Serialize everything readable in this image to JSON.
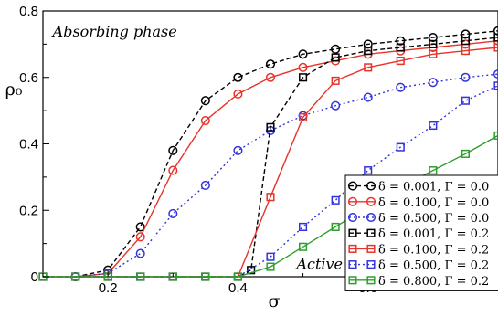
{
  "chart_data": {
    "type": "line",
    "xlabel": "σ",
    "ylabel": "ρ₀",
    "xlim": [
      0.1,
      0.8
    ],
    "ylim": [
      0,
      0.8
    ],
    "xticks": [
      0.2,
      0.4,
      0.6
    ],
    "xtick_labels": [
      "0.2",
      "0.4",
      "0.6"
    ],
    "yticks": [
      0,
      0.2,
      0.4,
      0.6,
      0.8
    ],
    "ytick_labels": [
      "0",
      "0.2",
      "0.4",
      "0.6",
      "0.8"
    ],
    "annotations": [
      {
        "text": "Absorbing phase",
        "x": 0.115,
        "y": 0.74
      },
      {
        "text": "Active phase",
        "x": 0.49,
        "y": 0.04
      }
    ],
    "legend_position": "bottom-right",
    "series": [
      {
        "name": "δ = 0.001, Γ = 0.0",
        "color": "#000000",
        "marker": "circle",
        "dash": "5,3",
        "x": [
          0.15,
          0.2,
          0.25,
          0.3,
          0.35,
          0.4,
          0.45,
          0.5,
          0.55,
          0.6,
          0.65,
          0.7,
          0.75,
          0.8
        ],
        "y": [
          0.0,
          0.02,
          0.15,
          0.38,
          0.53,
          0.6,
          0.64,
          0.67,
          0.685,
          0.7,
          0.71,
          0.72,
          0.73,
          0.74
        ]
      },
      {
        "name": "δ = 0.100, Γ = 0.0",
        "color": "#e8332a",
        "marker": "circle",
        "dash": "",
        "x": [
          0.15,
          0.2,
          0.25,
          0.3,
          0.35,
          0.4,
          0.45,
          0.5,
          0.55,
          0.6,
          0.65,
          0.7,
          0.75,
          0.8
        ],
        "y": [
          0.0,
          0.01,
          0.12,
          0.32,
          0.47,
          0.55,
          0.6,
          0.63,
          0.65,
          0.67,
          0.68,
          0.69,
          0.7,
          0.71
        ]
      },
      {
        "name": "δ = 0.500, Γ = 0.0",
        "color": "#3333dd",
        "marker": "circle",
        "dash": "2,3",
        "x": [
          0.15,
          0.2,
          0.25,
          0.3,
          0.35,
          0.4,
          0.45,
          0.5,
          0.55,
          0.6,
          0.65,
          0.7,
          0.75,
          0.8
        ],
        "y": [
          0.0,
          0.01,
          0.07,
          0.19,
          0.275,
          0.38,
          0.44,
          0.485,
          0.515,
          0.54,
          0.57,
          0.585,
          0.6,
          0.61
        ]
      },
      {
        "name": "δ = 0.001, Γ = 0.2",
        "color": "#000000",
        "marker": "square",
        "dash": "5,3",
        "x": [
          0.1,
          0.15,
          0.2,
          0.25,
          0.3,
          0.35,
          0.4,
          0.42,
          0.45,
          0.5,
          0.55,
          0.6,
          0.65,
          0.7,
          0.75,
          0.8
        ],
        "y": [
          0.0,
          0.0,
          0.0,
          0.0,
          0.0,
          0.0,
          0.0,
          0.02,
          0.45,
          0.6,
          0.66,
          0.68,
          0.69,
          0.7,
          0.71,
          0.72
        ]
      },
      {
        "name": "δ = 0.100, Γ = 0.2",
        "color": "#e8332a",
        "marker": "square",
        "dash": "",
        "x": [
          0.1,
          0.15,
          0.2,
          0.25,
          0.3,
          0.35,
          0.4,
          0.45,
          0.5,
          0.55,
          0.6,
          0.65,
          0.7,
          0.75,
          0.8
        ],
        "y": [
          0.0,
          0.0,
          0.0,
          0.0,
          0.0,
          0.0,
          0.0,
          0.24,
          0.48,
          0.59,
          0.63,
          0.65,
          0.67,
          0.68,
          0.69
        ]
      },
      {
        "name": "δ = 0.500, Γ = 0.2",
        "color": "#3333dd",
        "marker": "square",
        "dash": "2,3",
        "x": [
          0.1,
          0.15,
          0.2,
          0.25,
          0.3,
          0.35,
          0.4,
          0.45,
          0.5,
          0.55,
          0.6,
          0.65,
          0.7,
          0.75,
          0.8
        ],
        "y": [
          0.0,
          0.0,
          0.0,
          0.0,
          0.0,
          0.0,
          0.0,
          0.06,
          0.15,
          0.23,
          0.32,
          0.39,
          0.455,
          0.53,
          0.575
        ]
      },
      {
        "name": "δ = 0.800, Γ = 0.2",
        "color": "#2ca02c",
        "marker": "square",
        "dash": "",
        "x": [
          0.1,
          0.15,
          0.2,
          0.25,
          0.3,
          0.35,
          0.4,
          0.45,
          0.5,
          0.55,
          0.6,
          0.65,
          0.7,
          0.75,
          0.8
        ],
        "y": [
          0.0,
          0.0,
          0.0,
          0.0,
          0.0,
          0.0,
          0.0,
          0.03,
          0.09,
          0.15,
          0.21,
          0.27,
          0.32,
          0.37,
          0.425
        ]
      }
    ]
  }
}
